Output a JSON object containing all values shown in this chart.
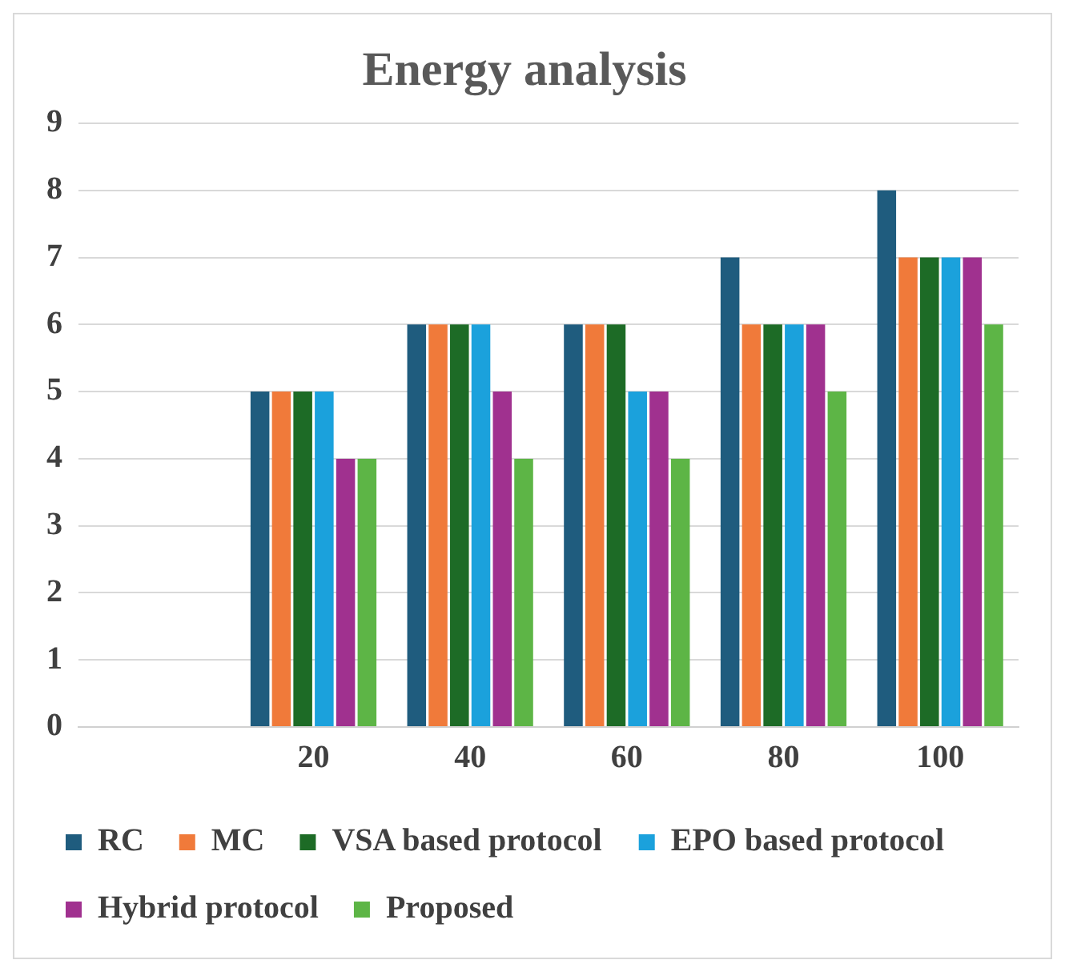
{
  "chart_data": {
    "type": "bar",
    "title": "Energy analysis",
    "categories": [
      null,
      "20",
      "40",
      "60",
      "80",
      "100"
    ],
    "series": [
      {
        "name": "RC",
        "color": "#1f5c7e",
        "values": [
          null,
          5,
          6,
          6,
          7,
          8
        ]
      },
      {
        "name": "MC",
        "color": "#f07a3a",
        "values": [
          null,
          5,
          6,
          6,
          6,
          7
        ]
      },
      {
        "name": "VSA based protocol",
        "color": "#1d6b26",
        "values": [
          null,
          5,
          6,
          6,
          6,
          7
        ]
      },
      {
        "name": "EPO based protocol",
        "color": "#1ba1dc",
        "values": [
          null,
          5,
          6,
          5,
          6,
          7
        ]
      },
      {
        "name": "Hybrid protocol",
        "color": "#a0318f",
        "values": [
          null,
          4,
          5,
          5,
          6,
          7
        ]
      },
      {
        "name": "Proposed",
        "color": "#5db546",
        "values": [
          null,
          4,
          4,
          4,
          5,
          6
        ]
      }
    ],
    "ylim": [
      0,
      9
    ],
    "yticks": [
      0,
      1,
      2,
      3,
      4,
      5,
      6,
      7,
      8,
      9
    ],
    "grid": "y",
    "legend": "bottom"
  }
}
